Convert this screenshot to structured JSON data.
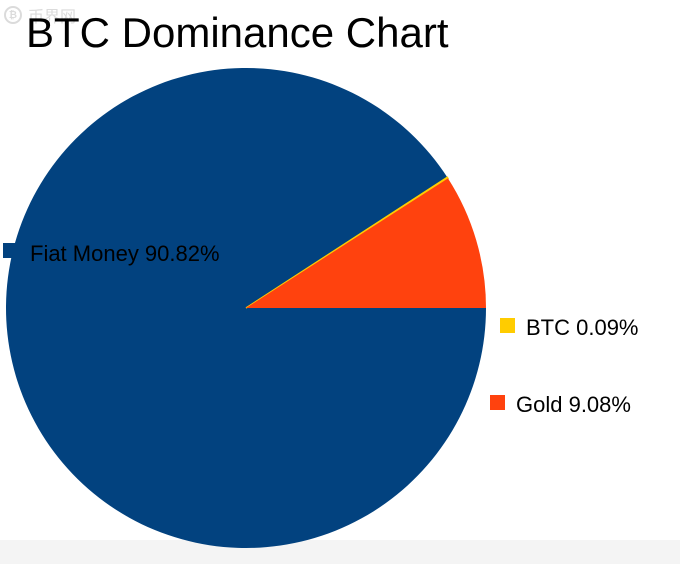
{
  "watermark": {
    "text": "币界网",
    "icon": "bitcoin-coin-icon"
  },
  "chart_data": {
    "type": "pie",
    "title": "BTC Dominance Chart",
    "slices": [
      {
        "label": "Fiat Money 90.82%",
        "name": "Fiat Money",
        "value": 90.82,
        "color": "#02427f"
      },
      {
        "label": "BTC 0.09%",
        "name": "BTC",
        "value": 0.09,
        "color": "#ffcc00"
      },
      {
        "label": "Gold 9.08%",
        "name": "Gold",
        "value": 9.08,
        "color": "#ff420e"
      }
    ],
    "start_angle_deg": 0,
    "direction": "clockwise",
    "legend": "labels beside chart"
  }
}
